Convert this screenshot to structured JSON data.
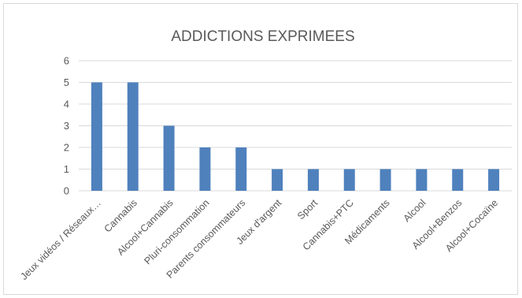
{
  "chart_data": {
    "type": "bar",
    "title": "ADDICTIONS EXPRIMEES",
    "xlabel": "",
    "ylabel": "",
    "categories": [
      "Jeux vidéos / Réseaux…",
      "Cannabis",
      "Alcool+Cannabis",
      "Pluri-consommation",
      "Parents consommateurs",
      "Jeux d'argent",
      "Sport",
      "Cannabis+PTC",
      "Médicaments",
      "Alcool",
      "Alcool+Benzos",
      "Alcool+Cocaïne"
    ],
    "values": [
      5,
      5,
      3,
      2,
      2,
      1,
      1,
      1,
      1,
      1,
      1,
      1
    ],
    "ylim": [
      0,
      6
    ],
    "yticks": [
      0,
      1,
      2,
      3,
      4,
      5,
      6
    ],
    "grid": true,
    "legend": "none",
    "bar_color": "#4f81bd",
    "grid_color": "#d9d9d9"
  }
}
